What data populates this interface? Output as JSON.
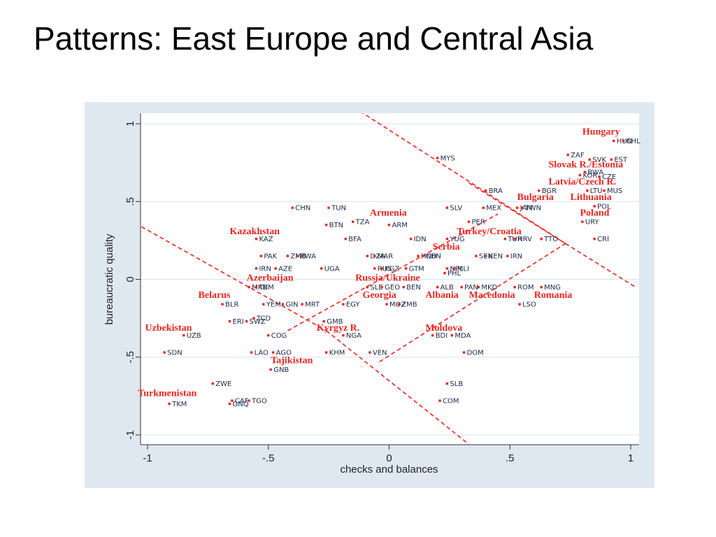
{
  "slide": {
    "title": "Patterns: East Europe and Central Asia"
  },
  "colors": {
    "frame": "#dfe8f1",
    "plot": "#ffffff",
    "points": "#e8261f",
    "region_labels": "#e8261f",
    "point_labels": "#1a2a4a",
    "boundary": "#e8261f",
    "grid": "#d7e3ee"
  },
  "chart_data": {
    "type": "scatter",
    "xlabel": "checks and balances",
    "ylabel": "bureaucratic quality",
    "xlim": [
      -1,
      1
    ],
    "ylim": [
      -1,
      1
    ],
    "xticks": [
      -1,
      -0.5,
      0,
      0.5,
      1
    ],
    "yticks": [
      -1,
      -0.5,
      0,
      0.5,
      1
    ],
    "xtick_labels": [
      "-1",
      "-.5",
      "0",
      ".5",
      "1"
    ],
    "ytick_labels": [
      "-1",
      "-.5",
      "0",
      ".5",
      "1"
    ],
    "grid": "horizontal",
    "points": [
      {
        "label": "HUN",
        "x": 0.93,
        "y": 0.89
      },
      {
        "label": "CHL",
        "x": 0.97,
        "y": 0.89
      },
      {
        "label": "ZAF",
        "x": 0.74,
        "y": 0.8
      },
      {
        "label": "SVK",
        "x": 0.83,
        "y": 0.77
      },
      {
        "label": "EST",
        "x": 0.92,
        "y": 0.77
      },
      {
        "label": "BWA",
        "x": 0.81,
        "y": 0.69
      },
      {
        "label": "KOR",
        "x": 0.79,
        "y": 0.67
      },
      {
        "label": "CZE",
        "x": 0.87,
        "y": 0.66
      },
      {
        "label": "BRA",
        "x": 0.4,
        "y": 0.57
      },
      {
        "label": "BGR",
        "x": 0.62,
        "y": 0.57
      },
      {
        "label": "LTU",
        "x": 0.82,
        "y": 0.57
      },
      {
        "label": "MUS",
        "x": 0.89,
        "y": 0.57
      },
      {
        "label": "SLV",
        "x": 0.24,
        "y": 0.46
      },
      {
        "label": "MEX",
        "x": 0.39,
        "y": 0.46
      },
      {
        "label": "JAM",
        "x": 0.53,
        "y": 0.46
      },
      {
        "label": "TWN",
        "x": 0.55,
        "y": 0.46
      },
      {
        "label": "POL",
        "x": 0.85,
        "y": 0.47
      },
      {
        "label": "URY",
        "x": 0.8,
        "y": 0.37
      },
      {
        "label": "PER",
        "x": 0.33,
        "y": 0.37
      },
      {
        "label": "CRI",
        "x": 0.85,
        "y": 0.26
      },
      {
        "label": "TTO",
        "x": 0.63,
        "y": 0.26
      },
      {
        "label": "TUR",
        "x": 0.48,
        "y": 0.26
      },
      {
        "label": "HRV",
        "x": 0.52,
        "y": 0.26
      },
      {
        "label": "MYS",
        "x": 0.2,
        "y": 0.78
      },
      {
        "label": "CHN",
        "x": -0.4,
        "y": 0.46
      },
      {
        "label": "TUN",
        "x": -0.25,
        "y": 0.46
      },
      {
        "label": "BTN",
        "x": -0.26,
        "y": 0.35
      },
      {
        "label": "TZA",
        "x": -0.15,
        "y": 0.37
      },
      {
        "label": "ARM",
        "x": 0.0,
        "y": 0.35
      },
      {
        "label": "KAZ",
        "x": -0.55,
        "y": 0.26
      },
      {
        "label": "BFA",
        "x": -0.18,
        "y": 0.26
      },
      {
        "label": "IDN",
        "x": 0.09,
        "y": 0.26
      },
      {
        "label": "YUG",
        "x": 0.24,
        "y": 0.26
      },
      {
        "label": "PAK",
        "x": -0.53,
        "y": 0.15
      },
      {
        "label": "ZMB",
        "x": -0.42,
        "y": 0.15
      },
      {
        "label": "RWA",
        "x": -0.38,
        "y": 0.15
      },
      {
        "label": "DZA",
        "x": -0.09,
        "y": 0.15
      },
      {
        "label": "MAR",
        "x": -0.06,
        "y": 0.15
      },
      {
        "label": "HND",
        "x": 0.12,
        "y": 0.15
      },
      {
        "label": "CHN",
        "x": 0.14,
        "y": 0.15
      },
      {
        "label": "SEN",
        "x": 0.36,
        "y": 0.15
      },
      {
        "label": "KEN",
        "x": 0.4,
        "y": 0.15
      },
      {
        "label": "IRN",
        "x": 0.49,
        "y": 0.15
      },
      {
        "label": "IRN",
        "x": -0.55,
        "y": 0.07
      },
      {
        "label": "AZE",
        "x": -0.47,
        "y": 0.07
      },
      {
        "label": "UGA",
        "x": -0.28,
        "y": 0.07
      },
      {
        "label": "RUS",
        "x": -0.06,
        "y": 0.07
      },
      {
        "label": "KGZ",
        "x": -0.03,
        "y": 0.07
      },
      {
        "label": "GTM",
        "x": 0.07,
        "y": 0.07
      },
      {
        "label": "NPL",
        "x": 0.24,
        "y": 0.07
      },
      {
        "label": "MLI",
        "x": 0.27,
        "y": 0.07
      },
      {
        "label": "PHL",
        "x": 0.23,
        "y": 0.04
      },
      {
        "label": "MKD",
        "x": -0.58,
        "y": -0.05
      },
      {
        "label": "TKM",
        "x": -0.55,
        "y": -0.05
      },
      {
        "label": "SLE",
        "x": -0.09,
        "y": -0.05
      },
      {
        "label": "GEO",
        "x": -0.03,
        "y": -0.05
      },
      {
        "label": "BEN",
        "x": 0.06,
        "y": -0.05
      },
      {
        "label": "ALB",
        "x": 0.2,
        "y": -0.05
      },
      {
        "label": "PAN",
        "x": 0.3,
        "y": -0.05
      },
      {
        "label": "MKD",
        "x": 0.37,
        "y": -0.05
      },
      {
        "label": "ROM",
        "x": 0.52,
        "y": -0.05
      },
      {
        "label": "MNG",
        "x": 0.63,
        "y": -0.05
      },
      {
        "label": "BLR",
        "x": -0.69,
        "y": -0.16
      },
      {
        "label": "YEM",
        "x": -0.52,
        "y": -0.16
      },
      {
        "label": "GIN",
        "x": -0.44,
        "y": -0.16
      },
      {
        "label": "MRT",
        "x": -0.36,
        "y": -0.16
      },
      {
        "label": "EGY",
        "x": -0.19,
        "y": -0.16
      },
      {
        "label": "MOZ",
        "x": -0.01,
        "y": -0.16
      },
      {
        "label": "ZMB",
        "x": 0.04,
        "y": -0.16
      },
      {
        "label": "LSO",
        "x": 0.54,
        "y": -0.16
      },
      {
        "label": "ERI",
        "x": -0.66,
        "y": -0.27
      },
      {
        "label": "SWZ",
        "x": -0.59,
        "y": -0.27
      },
      {
        "label": "TCD",
        "x": -0.56,
        "y": -0.25
      },
      {
        "label": "GMB",
        "x": -0.27,
        "y": -0.27
      },
      {
        "label": "UZB",
        "x": -0.85,
        "y": -0.36
      },
      {
        "label": "COG",
        "x": -0.5,
        "y": -0.36
      },
      {
        "label": "NGA",
        "x": -0.19,
        "y": -0.36
      },
      {
        "label": "BDI",
        "x": 0.18,
        "y": -0.36
      },
      {
        "label": "MDA",
        "x": 0.26,
        "y": -0.36
      },
      {
        "label": "SDN",
        "x": -0.93,
        "y": -0.47
      },
      {
        "label": "LAO",
        "x": -0.57,
        "y": -0.47
      },
      {
        "label": "AGO",
        "x": -0.48,
        "y": -0.47
      },
      {
        "label": "KHM",
        "x": -0.26,
        "y": -0.47
      },
      {
        "label": "VEN",
        "x": -0.08,
        "y": -0.47
      },
      {
        "label": "DOM",
        "x": 0.31,
        "y": -0.47
      },
      {
        "label": "GNB",
        "x": -0.49,
        "y": -0.58
      },
      {
        "label": "ZWE",
        "x": -0.73,
        "y": -0.67
      },
      {
        "label": "SLB",
        "x": 0.24,
        "y": -0.67
      },
      {
        "label": "CAF",
        "x": -0.65,
        "y": -0.78
      },
      {
        "label": "TGO",
        "x": -0.58,
        "y": -0.78
      },
      {
        "label": "GNQ",
        "x": -0.66,
        "y": -0.8
      },
      {
        "label": "COM",
        "x": 0.21,
        "y": -0.78
      },
      {
        "label": "TKM",
        "x": -0.91,
        "y": -0.8
      }
    ],
    "regions": [
      {
        "label": "Hungary",
        "x": 0.8,
        "y": 0.93
      },
      {
        "label": "Slovak R./Estonia",
        "x": 0.66,
        "y": 0.72
      },
      {
        "label": "Latvia/Czech R.",
        "x": 0.66,
        "y": 0.61
      },
      {
        "label": "Bulgaria",
        "x": 0.53,
        "y": 0.51
      },
      {
        "label": "Lithuania",
        "x": 0.75,
        "y": 0.51
      },
      {
        "label": "Poland",
        "x": 0.79,
        "y": 0.41
      },
      {
        "label": "Armenia",
        "x": -0.08,
        "y": 0.41
      },
      {
        "label": "Turkey/Croatia",
        "x": 0.28,
        "y": 0.29
      },
      {
        "label": "Serbia",
        "x": 0.18,
        "y": 0.19
      },
      {
        "label": "Kazakhstan",
        "x": -0.66,
        "y": 0.29
      },
      {
        "label": "Azerbaijan",
        "x": -0.59,
        "y": -0.01
      },
      {
        "label": "Russia/Ukraine",
        "x": -0.14,
        "y": -0.01
      },
      {
        "label": "Georgia",
        "x": -0.11,
        "y": -0.12
      },
      {
        "label": "Albania",
        "x": 0.15,
        "y": -0.12
      },
      {
        "label": "Macedonia",
        "x": 0.33,
        "y": -0.12
      },
      {
        "label": "Romania",
        "x": 0.6,
        "y": -0.12
      },
      {
        "label": "Belarus",
        "x": -0.79,
        "y": -0.12
      },
      {
        "label": "Uzbekistan",
        "x": -1.01,
        "y": -0.33
      },
      {
        "label": "Kyrgyz R.",
        "x": -0.3,
        "y": -0.33
      },
      {
        "label": "Moldova",
        "x": 0.15,
        "y": -0.33
      },
      {
        "label": "Tajikistan",
        "x": -0.49,
        "y": -0.54
      },
      {
        "label": "Turkmenistan",
        "x": -1.04,
        "y": -0.75
      }
    ],
    "boundary_lines": [
      {
        "x1": -1.05,
        "y1": 0.36,
        "x2": -0.26,
        "y2": -0.33
      },
      {
        "x1": -0.26,
        "y1": -0.33,
        "x2": 0.33,
        "y2": -1.06
      },
      {
        "x1": -0.42,
        "y1": -0.33,
        "x2": 0.45,
        "y2": 0.42
      },
      {
        "x1": -0.04,
        "y1": -0.53,
        "x2": 0.73,
        "y2": 0.23
      },
      {
        "x1": 0.33,
        "y1": 0.62,
        "x2": 0.73,
        "y2": 0.23
      },
      {
        "x1": -0.12,
        "y1": 1.08,
        "x2": 0.73,
        "y2": 0.23
      },
      {
        "x1": 0.73,
        "y1": 0.23,
        "x2": 1.02,
        "y2": -0.05
      }
    ]
  }
}
